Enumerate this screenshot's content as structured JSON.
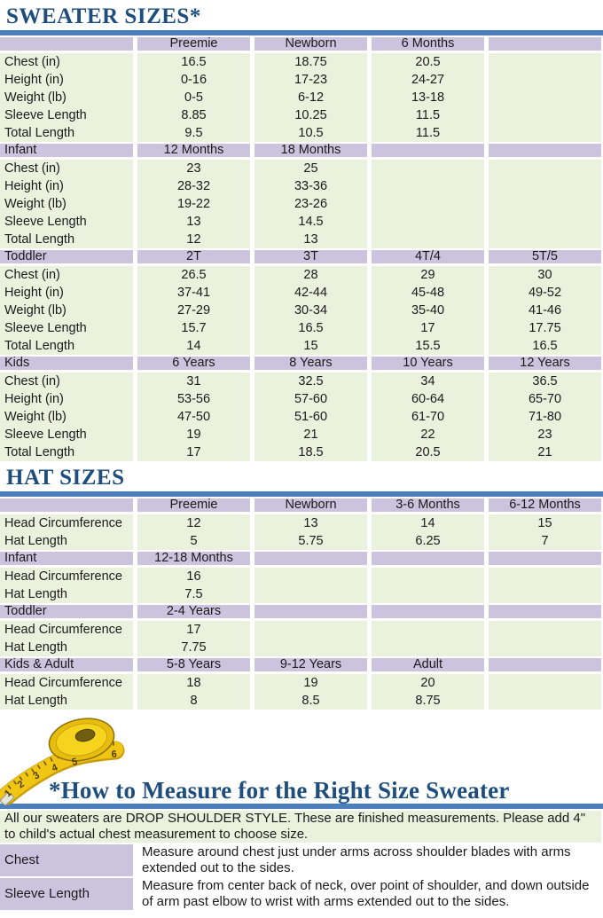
{
  "colors": {
    "title_blue": "#1D4E7E",
    "divider_blue": "#4C80BD",
    "header_purple": "#CCC3DE",
    "row_green": "#EAF1DD",
    "tape_yellow": "#F0C514"
  },
  "sweater": {
    "title": "SWEATER SIZES*",
    "sections": [
      {
        "header": [
          "",
          "Preemie",
          "Newborn",
          "6 Months",
          ""
        ],
        "rows": [
          [
            "Chest (in)",
            "16.5",
            "18.75",
            "20.5",
            ""
          ],
          [
            "Height (in)",
            "0-16",
            "17-23",
            "24-27",
            ""
          ],
          [
            "Weight (lb)",
            "0-5",
            "6-12",
            "13-18",
            ""
          ],
          [
            "Sleeve Length",
            "8.85",
            "10.25",
            "11.5",
            ""
          ],
          [
            "Total Length",
            "9.5",
            "10.5",
            "11.5",
            ""
          ]
        ]
      },
      {
        "header": [
          "Infant",
          "12 Months",
          "18 Months",
          "",
          ""
        ],
        "rows": [
          [
            "Chest (in)",
            "23",
            "25",
            "",
            ""
          ],
          [
            "Height (in)",
            "28-32",
            "33-36",
            "",
            ""
          ],
          [
            "Weight (lb)",
            "19-22",
            "23-26",
            "",
            ""
          ],
          [
            "Sleeve Length",
            "13",
            "14.5",
            "",
            ""
          ],
          [
            "Total Length",
            "12",
            "13",
            "",
            ""
          ]
        ]
      },
      {
        "header": [
          "Toddler",
          "2T",
          "3T",
          "4T/4",
          "5T/5"
        ],
        "rows": [
          [
            "Chest (in)",
            "26.5",
            "28",
            "29",
            "30"
          ],
          [
            "Height (in)",
            "37-41",
            "42-44",
            "45-48",
            "49-52"
          ],
          [
            "Weight (lb)",
            "27-29",
            "30-34",
            "35-40",
            "41-46"
          ],
          [
            "Sleeve Length",
            "15.7",
            "16.5",
            "17",
            "17.75"
          ],
          [
            "Total Length",
            "14",
            "15",
            "15.5",
            "16.5"
          ]
        ]
      },
      {
        "header": [
          "Kids",
          "6 Years",
          "8 Years",
          "10 Years",
          "12 Years"
        ],
        "rows": [
          [
            "Chest (in)",
            "31",
            "32.5",
            "34",
            "36.5"
          ],
          [
            "Height (in)",
            "53-56",
            "57-60",
            "60-64",
            "65-70"
          ],
          [
            "Weight (lb)",
            "47-50",
            "51-60",
            "61-70",
            "71-80"
          ],
          [
            "Sleeve Length",
            "19",
            "21",
            "22",
            "23"
          ],
          [
            "Total Length",
            "17",
            "18.5",
            "20.5",
            "21"
          ]
        ]
      }
    ]
  },
  "hats": {
    "title": "HAT SIZES",
    "sections": [
      {
        "header": [
          "",
          "Preemie",
          "Newborn",
          "3-6 Months",
          "6-12 Months"
        ],
        "rows": [
          [
            "Head Circumference",
            "12",
            "13",
            "14",
            "15"
          ],
          [
            "Hat Length",
            "5",
            "5.75",
            "6.25",
            "7"
          ]
        ]
      },
      {
        "header": [
          "Infant",
          "12-18 Months",
          "",
          "",
          ""
        ],
        "rows": [
          [
            "Head Circumference",
            "16",
            "",
            "",
            ""
          ],
          [
            "Hat Length",
            "7.5",
            "",
            "",
            ""
          ]
        ]
      },
      {
        "header": [
          "Toddler",
          "2-4 Years",
          "",
          "",
          ""
        ],
        "rows": [
          [
            "Head Circumference",
            "17",
            "",
            "",
            ""
          ],
          [
            "Hat Length",
            "7.75",
            "",
            "",
            ""
          ]
        ]
      },
      {
        "header": [
          "Kids & Adult",
          "5-8 Years",
          "9-12 Years",
          "Adult",
          ""
        ],
        "rows": [
          [
            "Head Circumference",
            "18",
            "19",
            "20",
            ""
          ],
          [
            "Hat Length",
            "8",
            "8.5",
            "8.75",
            ""
          ]
        ]
      }
    ]
  },
  "measure": {
    "title": "*How to Measure for the Right Size Sweater",
    "tape_icon": "measuring-tape",
    "tape_numbers": [
      "1",
      "2",
      "3",
      "4",
      "5",
      "6"
    ],
    "intro": "All our sweaters are DROP SHOULDER STYLE.  These are finished measurements.  Please add 4\" to child's actual chest measurement to choose size.",
    "rows": [
      {
        "label": "Chest",
        "text": "Measure around chest just under arms across shoulder blades with arms extended out to the sides."
      },
      {
        "label": "Sleeve Length",
        "text": "Measure from center back of neck, over point of shoulder, and down outside of arm past elbow to wrist with arms extended out to the sides."
      }
    ]
  }
}
